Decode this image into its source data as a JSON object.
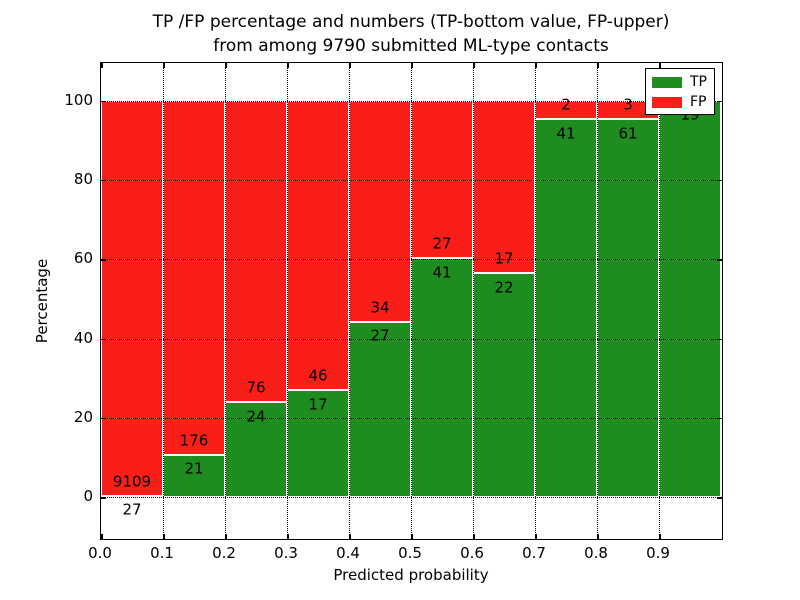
{
  "chart_data": {
    "type": "bar",
    "stacked": true,
    "title": "TP /FP percentage and numbers (TP-bottom value, FP-upper)\nfrom among 9790 submitted ML-type contacts",
    "title_line1": "TP /FP percentage and numbers (TP-bottom value, FP-upper)",
    "title_line2": "from among 9790 submitted ML-type contacts",
    "xlabel": "Predicted probability",
    "ylabel": "Percentage",
    "xlim": [
      0.0,
      1.0
    ],
    "ylim": [
      -10.3,
      109.5
    ],
    "x_tick_labels": [
      "0.0",
      "0.1",
      "0.2",
      "0.3",
      "0.4",
      "0.5",
      "0.6",
      "0.7",
      "0.8",
      "0.9"
    ],
    "y_ticks": [
      0,
      20,
      40,
      60,
      80,
      100
    ],
    "y_tick_labels": [
      "0",
      "20",
      "40",
      "60",
      "80",
      "100"
    ],
    "grid": "dotted",
    "total_contacts": 9790,
    "bin_width": 0.1,
    "categories": [
      "0.0-0.1",
      "0.1-0.2",
      "0.2-0.3",
      "0.3-0.4",
      "0.4-0.5",
      "0.5-0.6",
      "0.6-0.7",
      "0.7-0.8",
      "0.8-0.9",
      "0.9-1.0"
    ],
    "bars": [
      {
        "bin": "0.0-0.1",
        "tp": 27,
        "fp": 9109,
        "tp_percent": 0.3
      },
      {
        "bin": "0.1-0.2",
        "tp": 21,
        "fp": 176,
        "tp_percent": 10.7
      },
      {
        "bin": "0.2-0.3",
        "tp": 24,
        "fp": 76,
        "tp_percent": 24.0
      },
      {
        "bin": "0.3-0.4",
        "tp": 17,
        "fp": 46,
        "tp_percent": 27.0
      },
      {
        "bin": "0.4-0.5",
        "tp": 27,
        "fp": 34,
        "tp_percent": 44.3
      },
      {
        "bin": "0.5-0.6",
        "tp": 41,
        "fp": 27,
        "tp_percent": 60.3
      },
      {
        "bin": "0.6-0.7",
        "tp": 22,
        "fp": 17,
        "tp_percent": 56.4
      },
      {
        "bin": "0.7-0.8",
        "tp": 41,
        "fp": 2,
        "tp_percent": 95.3
      },
      {
        "bin": "0.8-0.9",
        "tp": 61,
        "fp": 3,
        "tp_percent": 95.3
      },
      {
        "bin": "0.9-1.0",
        "tp": 19,
        "fp": 0,
        "tp_percent": 100.0,
        "fp_label_hidden_behind_legend": true
      }
    ],
    "series": [
      {
        "name": "TP",
        "color": "#1e8c1e",
        "values": [
          27,
          21,
          24,
          17,
          27,
          41,
          22,
          41,
          61,
          19
        ]
      },
      {
        "name": "FP",
        "color": "#fa1e19",
        "values": [
          9109,
          176,
          76,
          46,
          34,
          27,
          17,
          2,
          3,
          0
        ]
      }
    ],
    "legend": {
      "position": "upper right",
      "entries": [
        {
          "label": "TP",
          "color": "#1e8c1e"
        },
        {
          "label": "FP",
          "color": "#fa1e19"
        }
      ]
    },
    "colors": {
      "tp_green": "#1e8c1e",
      "fp_red": "#fa1e19",
      "grid": "#000000",
      "background": "#ffffff",
      "text": "#000000"
    }
  }
}
